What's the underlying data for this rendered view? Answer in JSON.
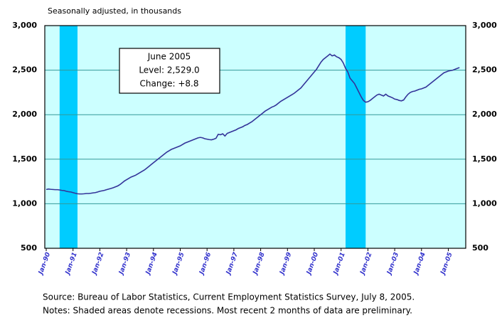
{
  "chart_data": {
    "type": "line",
    "subtitle": "Seasonally adjusted, in thousands",
    "annotation": [
      "June 2005",
      "Level: 2,529.0",
      "Change: +8.8"
    ],
    "source": "Source:  Bureau of Labor Statistics, Current Employment Statistics Survey, July 8, 2005.",
    "notes": "Notes:  Shaded areas denote recessions.  Most recent 2 months of data are preliminary.",
    "categories": [
      "Jan-90",
      null,
      null,
      null,
      null,
      null,
      null,
      null,
      null,
      null,
      null,
      null,
      "Jan-91",
      null,
      null,
      null,
      null,
      null,
      null,
      null,
      null,
      null,
      null,
      null,
      "Jan-92",
      null,
      null,
      null,
      null,
      null,
      null,
      null,
      null,
      null,
      null,
      null,
      "Jan-93",
      null,
      null,
      null,
      null,
      null,
      null,
      null,
      null,
      null,
      null,
      null,
      "Jan-94",
      null,
      null,
      null,
      null,
      null,
      null,
      null,
      null,
      null,
      null,
      null,
      "Jan-95",
      null,
      null,
      null,
      null,
      null,
      null,
      null,
      null,
      null,
      null,
      null,
      "Jan-96",
      null,
      null,
      null,
      null,
      null,
      null,
      null,
      null,
      null,
      null,
      null,
      "Jan-97",
      null,
      null,
      null,
      null,
      null,
      null,
      null,
      null,
      null,
      null,
      null,
      "Jan-98",
      null,
      null,
      null,
      null,
      null,
      null,
      null,
      null,
      null,
      null,
      null,
      "Jan-99",
      null,
      null,
      null,
      null,
      null,
      null,
      null,
      null,
      null,
      null,
      null,
      "Jan-00",
      null,
      null,
      null,
      null,
      null,
      null,
      null,
      null,
      null,
      null,
      null,
      "Jan-01",
      null,
      null,
      null,
      null,
      null,
      null,
      null,
      null,
      null,
      null,
      null,
      "Jan-02",
      null,
      null,
      null,
      null,
      null,
      null,
      null,
      null,
      null,
      null,
      null,
      "Jan-03",
      null,
      null,
      null,
      null,
      null,
      null,
      null,
      null,
      null,
      null,
      null,
      "Jan-04",
      null,
      null,
      null,
      null,
      null,
      null,
      null,
      null,
      null,
      null,
      null,
      "Jan-05",
      null,
      null,
      null,
      null,
      null
    ],
    "values": [
      1160,
      1165,
      1162,
      1160,
      1158,
      1158,
      1155,
      1150,
      1148,
      1140,
      1135,
      1132,
      1125,
      1118,
      1112,
      1110,
      1110,
      1112,
      1115,
      1115,
      1118,
      1122,
      1125,
      1132,
      1140,
      1145,
      1150,
      1158,
      1165,
      1172,
      1180,
      1190,
      1200,
      1215,
      1235,
      1255,
      1270,
      1285,
      1300,
      1310,
      1320,
      1335,
      1350,
      1365,
      1380,
      1400,
      1420,
      1440,
      1460,
      1480,
      1500,
      1520,
      1540,
      1560,
      1580,
      1595,
      1610,
      1620,
      1630,
      1640,
      1650,
      1665,
      1680,
      1690,
      1700,
      1710,
      1720,
      1730,
      1740,
      1745,
      1740,
      1730,
      1725,
      1720,
      1718,
      1725,
      1735,
      1780,
      1775,
      1785,
      1760,
      1790,
      1800,
      1810,
      1820,
      1830,
      1845,
      1855,
      1865,
      1880,
      1890,
      1905,
      1920,
      1940,
      1960,
      1980,
      2000,
      2020,
      2040,
      2055,
      2070,
      2085,
      2095,
      2110,
      2130,
      2150,
      2165,
      2180,
      2195,
      2210,
      2225,
      2240,
      2260,
      2280,
      2300,
      2330,
      2360,
      2390,
      2420,
      2450,
      2480,
      2510,
      2550,
      2590,
      2620,
      2640,
      2660,
      2680,
      2660,
      2670,
      2650,
      2640,
      2620,
      2580,
      2520,
      2480,
      2410,
      2380,
      2350,
      2300,
      2250,
      2200,
      2160,
      2140,
      2145,
      2160,
      2180,
      2200,
      2220,
      2230,
      2220,
      2210,
      2230,
      2210,
      2200,
      2190,
      2175,
      2170,
      2160,
      2155,
      2165,
      2200,
      2230,
      2250,
      2260,
      2265,
      2275,
      2285,
      2290,
      2300,
      2310,
      2330,
      2350,
      2370,
      2390,
      2410,
      2430,
      2450,
      2470,
      2480,
      2490,
      2495,
      2500,
      2510,
      2520,
      2529
    ],
    "color": "#333399",
    "recessions": [
      {
        "start": 6,
        "end": 14
      },
      {
        "start": 134,
        "end": 143
      }
    ],
    "recession_color": "#00ccff",
    "background": "#ccffff",
    "ylim": [
      500,
      3000
    ],
    "yticks": [
      500,
      {
        "value": 1000,
        "label": "1,000"
      },
      {
        "value": 1500,
        "label": "1,500"
      },
      {
        "value": 2000,
        "label": "2,000"
      },
      {
        "value": 2500,
        "label": "2,500"
      },
      {
        "value": 3000,
        "label": "3,000"
      }
    ],
    "y2lim": [
      500,
      3000
    ],
    "y2ticks": [
      500,
      {
        "value": 1000,
        "label": "1,000"
      },
      {
        "value": 1500,
        "label": "1,500"
      },
      {
        "value": 2000,
        "label": "2,000"
      },
      {
        "value": 2500,
        "label": "2,500"
      },
      {
        "value": 3000,
        "label": "3,000"
      }
    ],
    "grid": true
  }
}
